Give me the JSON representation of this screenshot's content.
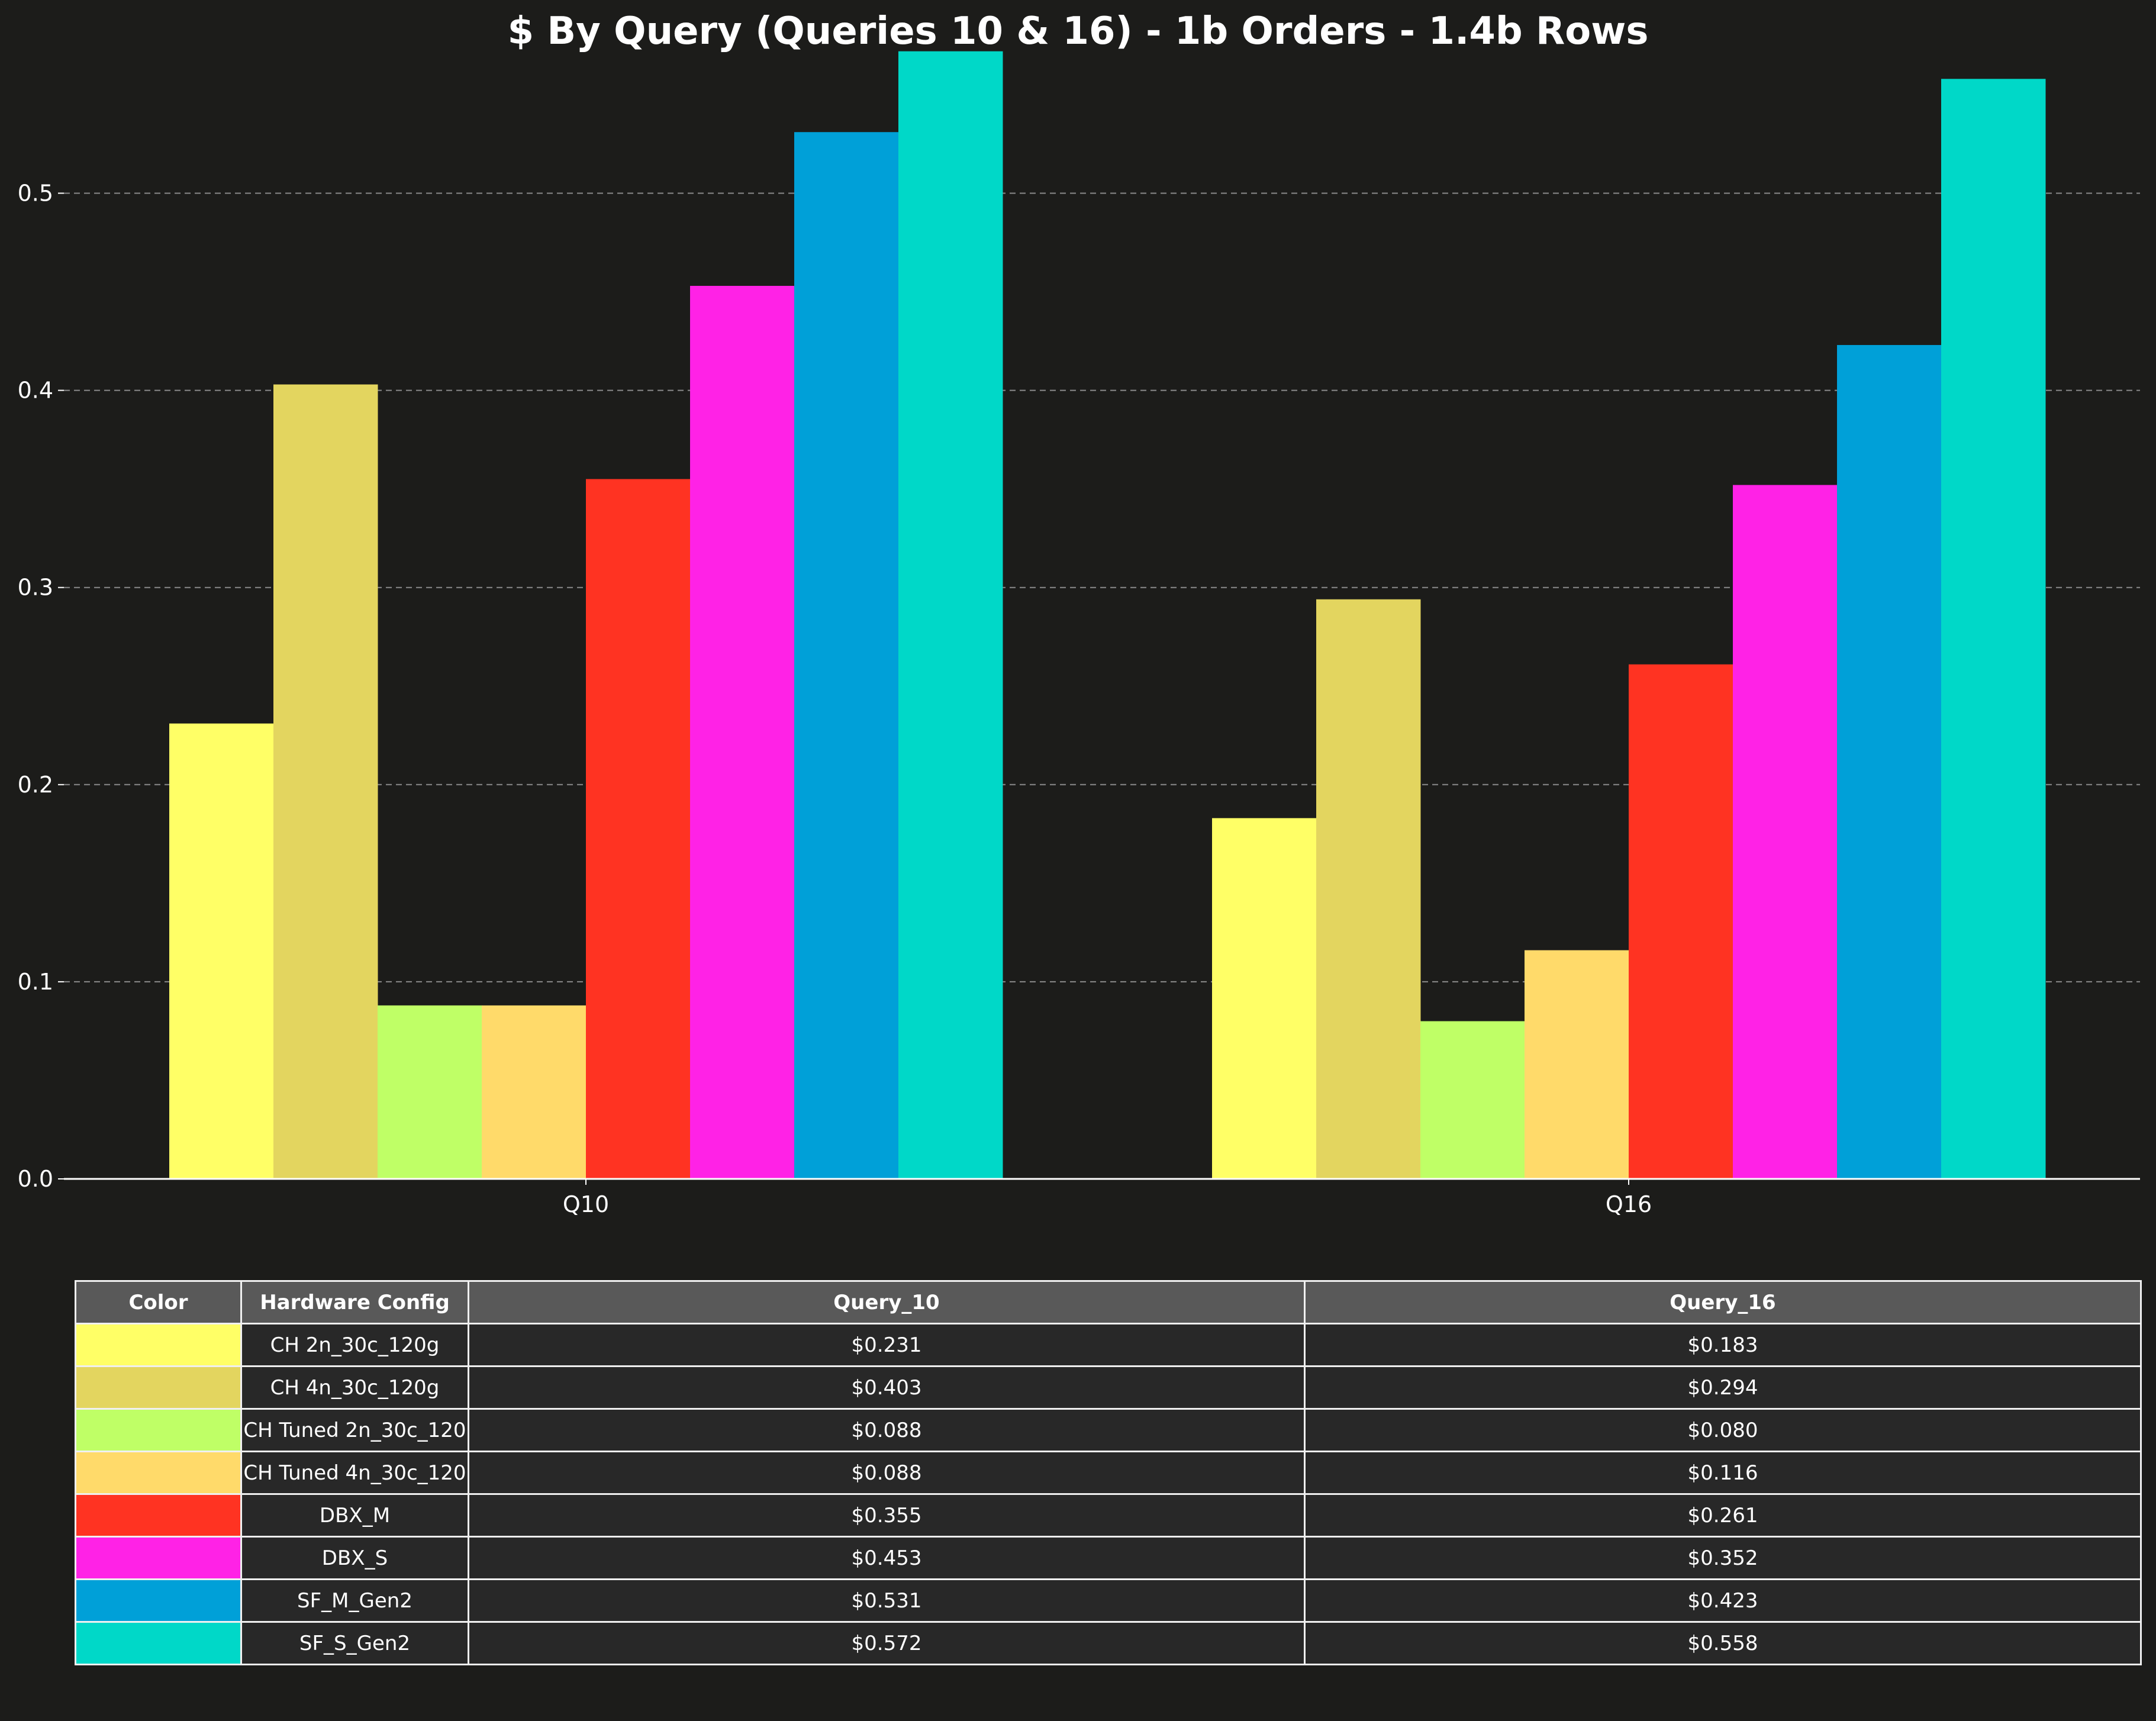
{
  "chart_data": {
    "type": "bar",
    "title": "$ By Query (Queries 10 & 16) - 1b Orders - 1.4b Rows",
    "xlabel": "",
    "ylabel": "",
    "categories": [
      "Q10",
      "Q16"
    ],
    "ylim": [
      0,
      0.58
    ],
    "yticks": [
      "0.0",
      "0.1",
      "0.2",
      "0.3",
      "0.4",
      "0.5"
    ],
    "grid": true,
    "series": [
      {
        "name": "CH 2n_30c_120g",
        "color": "#ffff66",
        "values": [
          0.231,
          0.183
        ]
      },
      {
        "name": "CH 4n_30c_120g",
        "color": "#e3d55f",
        "values": [
          0.403,
          0.294
        ]
      },
      {
        "name": "CH Tuned 2n_30c_120",
        "color": "#bfff66",
        "values": [
          0.088,
          0.08
        ]
      },
      {
        "name": "CH Tuned 4n_30c_120",
        "color": "#ffda6a",
        "values": [
          0.088,
          0.116
        ]
      },
      {
        "name": "DBX_M",
        "color": "#ff3322",
        "values": [
          0.355,
          0.261
        ]
      },
      {
        "name": "DBX_S",
        "color": "#ff22e6",
        "values": [
          0.453,
          0.352
        ]
      },
      {
        "name": "SF_M_Gen2",
        "color": "#00a0d8",
        "values": [
          0.531,
          0.423
        ]
      },
      {
        "name": "SF_S_Gen2",
        "color": "#00d8c8",
        "values": [
          0.572,
          0.558
        ]
      }
    ]
  },
  "table": {
    "headers": [
      "Color",
      "Hardware Config",
      "Query_10",
      "Query_16"
    ],
    "rows": [
      {
        "config": "CH 2n_30c_120g",
        "q10": "$0.231",
        "q16": "$0.183",
        "color": "#ffff66"
      },
      {
        "config": "CH 4n_30c_120g",
        "q10": "$0.403",
        "q16": "$0.294",
        "color": "#e3d55f"
      },
      {
        "config": "CH Tuned 2n_30c_120",
        "q10": "$0.088",
        "q16": "$0.080",
        "color": "#bfff66"
      },
      {
        "config": "CH Tuned 4n_30c_120",
        "q10": "$0.088",
        "q16": "$0.116",
        "color": "#ffda6a"
      },
      {
        "config": "DBX_M",
        "q10": "$0.355",
        "q16": "$0.261",
        "color": "#ff3322"
      },
      {
        "config": "DBX_S",
        "q10": "$0.453",
        "q16": "$0.352",
        "color": "#ff22e6"
      },
      {
        "config": "SF_M_Gen2",
        "q10": "$0.531",
        "q16": "$0.423",
        "color": "#00a0d8"
      },
      {
        "config": "SF_S_Gen2",
        "q10": "$0.572",
        "q16": "$0.558",
        "color": "#00d8c8"
      }
    ]
  }
}
